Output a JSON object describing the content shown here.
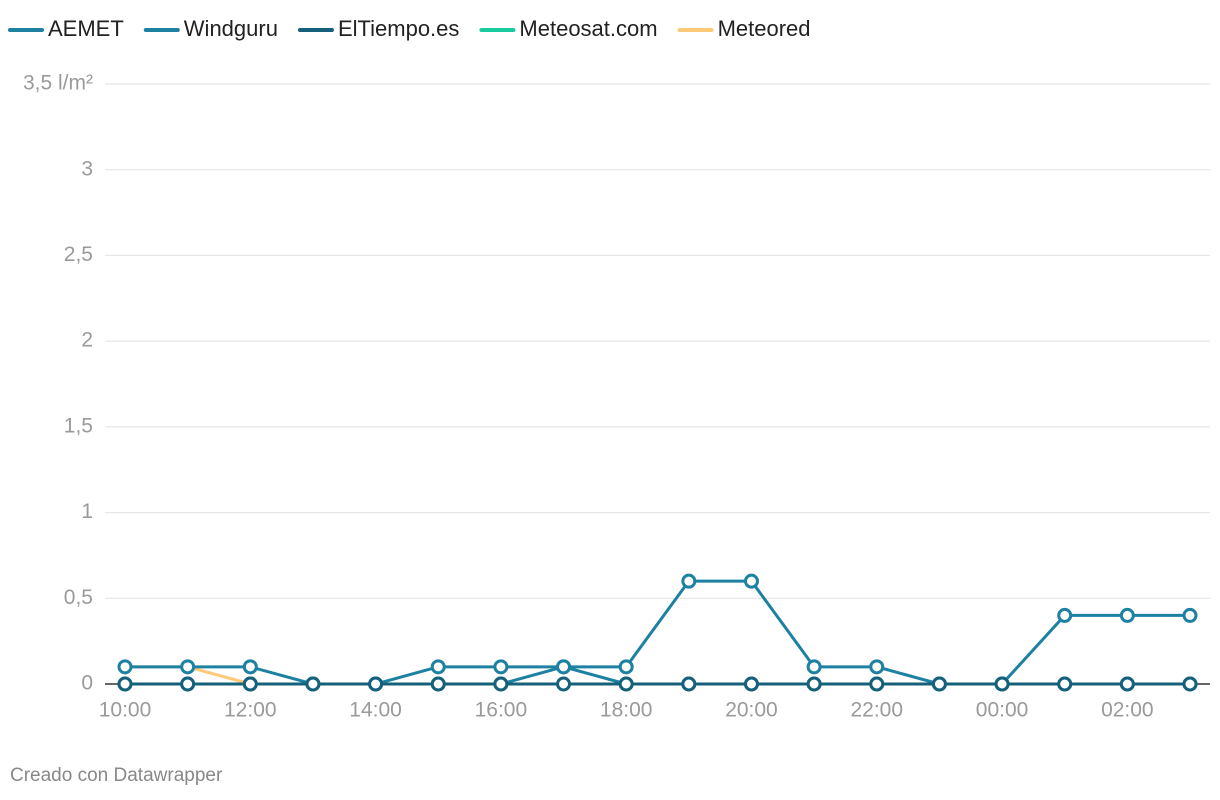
{
  "chart_data": {
    "type": "line",
    "categories": [
      "10:00",
      null,
      "12:00",
      null,
      "14:00",
      null,
      "16:00",
      null,
      "18:00",
      null,
      "20:00",
      null,
      "22:00",
      null,
      "00:00",
      null,
      "02:00",
      null
    ],
    "series": [
      {
        "name": "AEMET",
        "color": "#1d81a2",
        "values": [
          0,
          0,
          0,
          0,
          0,
          0,
          0,
          0.1,
          0,
          0,
          0,
          0,
          0,
          0,
          0,
          0,
          0,
          0
        ]
      },
      {
        "name": "Windguru",
        "color": "#1d81a2",
        "values": [
          0.1,
          0.1,
          0.1,
          0,
          0,
          0.1,
          0.1,
          0.1,
          0.1,
          0.6,
          0.6,
          0.1,
          0.1,
          0,
          0,
          0.4,
          0.4,
          0.4
        ]
      },
      {
        "name": "ElTiempo.es",
        "color": "#15607a",
        "values": [
          0,
          0,
          0,
          0,
          0,
          0,
          0,
          0,
          0,
          0,
          0,
          0,
          0,
          0,
          0,
          0,
          0,
          0
        ]
      },
      {
        "name": "Meteosat.com",
        "color": "#18cca0",
        "values": [
          0,
          0,
          0,
          0,
          0,
          0,
          0,
          0,
          0,
          0,
          0,
          0,
          0,
          0,
          0,
          0,
          0,
          0
        ]
      },
      {
        "name": "Meteored",
        "color": "#fdca78",
        "values": [
          0.1,
          0.1,
          0,
          0,
          0,
          0,
          0,
          0,
          0,
          0,
          0,
          0,
          0,
          0,
          0,
          0,
          0,
          0
        ]
      }
    ],
    "ylim": [
      0,
      3.5
    ],
    "yticks": [
      0,
      {
        "value": 0.5,
        "label": "0,5"
      },
      1,
      {
        "value": 1.5,
        "label": "1,5"
      },
      2,
      {
        "value": 2.5,
        "label": "2,5"
      },
      3,
      {
        "value": 3.5,
        "label": "3,5 l/m²"
      }
    ],
    "grid": true,
    "footer": "Creado con Datawrapper"
  }
}
